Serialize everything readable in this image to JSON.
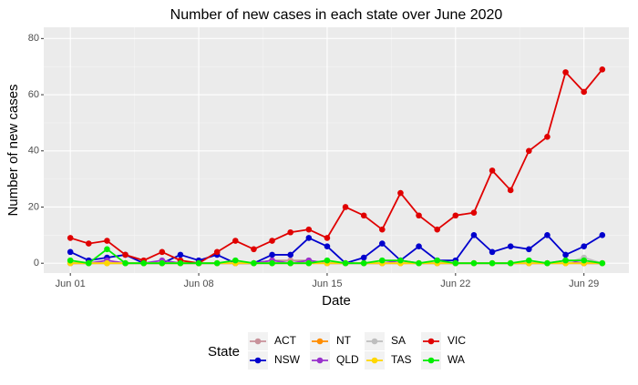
{
  "chart_data": {
    "type": "line",
    "title": "Number of new cases in each state over June 2020",
    "x_label": "Date",
    "y_label": "Number of new cases",
    "legend_title": "State",
    "legend_position": "bottom",
    "grid": true,
    "x": [
      1,
      2,
      3,
      4,
      5,
      6,
      7,
      8,
      9,
      10,
      11,
      12,
      13,
      14,
      15,
      16,
      17,
      18,
      19,
      20,
      21,
      22,
      23,
      24,
      25,
      26,
      27,
      28,
      29,
      30
    ],
    "xlim": [
      -0.45,
      31.45
    ],
    "xticks": [
      {
        "value": 1,
        "label": "Jun 01"
      },
      {
        "value": 8,
        "label": "Jun 08"
      },
      {
        "value": 15,
        "label": "Jun 15"
      },
      {
        "value": 22,
        "label": "Jun 22"
      },
      {
        "value": 29,
        "label": "Jun 29"
      }
    ],
    "ylim": [
      -3.5,
      84
    ],
    "yticks": [
      0,
      20,
      40,
      60,
      80
    ],
    "series": [
      {
        "name": "ACT",
        "color": "#c8919a",
        "values": [
          0,
          0,
          0,
          0,
          0,
          0,
          0,
          0,
          0,
          0,
          0,
          1,
          1,
          1,
          0,
          0,
          0,
          0,
          0,
          0,
          0,
          0,
          0,
          0,
          0,
          0,
          0,
          0,
          0,
          0
        ]
      },
      {
        "name": "NSW",
        "color": "#0000cd",
        "values": [
          4,
          1,
          2,
          3,
          0,
          0,
          3,
          1,
          3,
          0,
          0,
          3,
          3,
          9,
          6,
          0,
          2,
          7,
          1,
          6,
          1,
          1,
          10,
          4,
          6,
          5,
          10,
          3,
          6,
          10
        ]
      },
      {
        "name": "NT",
        "color": "#ff8c00",
        "values": [
          0,
          0,
          0,
          0,
          0,
          0,
          0,
          0,
          0,
          0,
          0,
          0,
          0,
          0,
          0,
          0,
          0,
          0,
          0,
          0,
          0,
          0,
          0,
          0,
          0,
          0,
          0,
          0,
          0,
          0
        ]
      },
      {
        "name": "QLD",
        "color": "#9932cc",
        "values": [
          0,
          0,
          1,
          0,
          0,
          1,
          0,
          0,
          0,
          0,
          0,
          1,
          0,
          1,
          0,
          0,
          0,
          0,
          1,
          0,
          0,
          0,
          0,
          0,
          0,
          0,
          0,
          1,
          0,
          0
        ]
      },
      {
        "name": "SA",
        "color": "#bebebe",
        "values": [
          0,
          0,
          0,
          0,
          0,
          0,
          0,
          0,
          0,
          0,
          0,
          0,
          0,
          0,
          0,
          0,
          0,
          0,
          0,
          0,
          0,
          0,
          0,
          0,
          0,
          0,
          0,
          0,
          2,
          0
        ]
      },
      {
        "name": "TAS",
        "color": "#ffd700",
        "values": [
          0,
          0,
          0,
          0,
          0,
          0,
          0,
          0,
          0,
          0,
          0,
          0,
          0,
          0,
          0,
          0,
          0,
          0,
          0,
          0,
          0,
          0,
          0,
          0,
          0,
          0,
          0,
          0,
          0,
          0
        ]
      },
      {
        "name": "VIC",
        "color": "#e00000",
        "values": [
          9,
          7,
          8,
          3,
          1,
          4,
          1,
          0,
          4,
          8,
          5,
          8,
          11,
          12,
          9,
          20,
          17,
          12,
          25,
          17,
          12,
          17,
          18,
          33,
          26,
          40,
          45,
          68,
          61,
          69
        ]
      },
      {
        "name": "WA",
        "color": "#00ee00",
        "values": [
          1,
          0,
          5,
          0,
          0,
          0,
          0,
          0,
          0,
          1,
          0,
          0,
          0,
          0,
          1,
          0,
          0,
          1,
          1,
          0,
          1,
          0,
          0,
          0,
          0,
          1,
          0,
          1,
          1,
          0
        ]
      }
    ]
  }
}
